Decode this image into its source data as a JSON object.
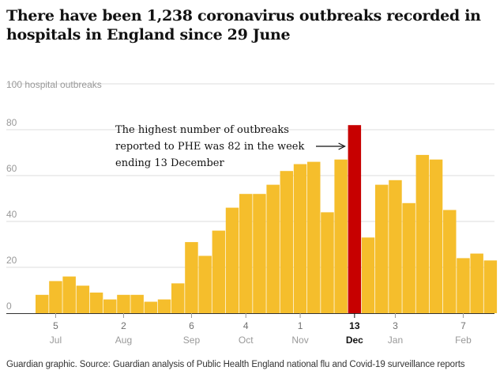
{
  "header": {
    "title": "There have been 1,238 coronavirus outbreaks recorded in hospitals in England since 29 June"
  },
  "footer": {
    "source": "Guardian graphic. Source: Guardian analysis of Public Health England national flu and Covid-19 surveillance reports"
  },
  "colors": {
    "bar": "#f5be2c",
    "highlight": "#c70000",
    "grid": "#dcdcdc",
    "axis": "#333333"
  },
  "chart_data": {
    "type": "bar",
    "title": "There have been 1,238 coronavirus outbreaks recorded in hospitals in England since 29 June",
    "ylabel": "100 hospital outbreaks",
    "ylim": [
      0,
      100
    ],
    "yticks": [
      0,
      20,
      40,
      60,
      80
    ],
    "ytick_labels": [
      "0",
      "20",
      "40",
      "60",
      "80"
    ],
    "top_label": "100 hospital outbreaks",
    "values": [
      8,
      14,
      16,
      12,
      9,
      6,
      8,
      8,
      5,
      6,
      13,
      31,
      25,
      36,
      46,
      52,
      52,
      56,
      62,
      65,
      66,
      44,
      67,
      82,
      33,
      56,
      58,
      48,
      69,
      67,
      45,
      24,
      26,
      23
    ],
    "highlight_index": 23,
    "x_ticks": [
      {
        "index": 1,
        "day": "5",
        "month": "Jul"
      },
      {
        "index": 6,
        "day": "2",
        "month": "Aug"
      },
      {
        "index": 11,
        "day": "6",
        "month": "Sep"
      },
      {
        "index": 15,
        "day": "4",
        "month": "Oct"
      },
      {
        "index": 19,
        "day": "1",
        "month": "Nov"
      },
      {
        "index": 23,
        "day": "13",
        "month": "Dec",
        "highlight": true
      },
      {
        "index": 26,
        "day": "3",
        "month": "Jan"
      },
      {
        "index": 31,
        "day": "7",
        "month": "Feb"
      }
    ],
    "annotation": {
      "lines": [
        "The highest number of outbreaks",
        "reported to PHE was 82 in the week",
        "ending 13 December"
      ]
    },
    "legend": "none",
    "grid": true
  }
}
